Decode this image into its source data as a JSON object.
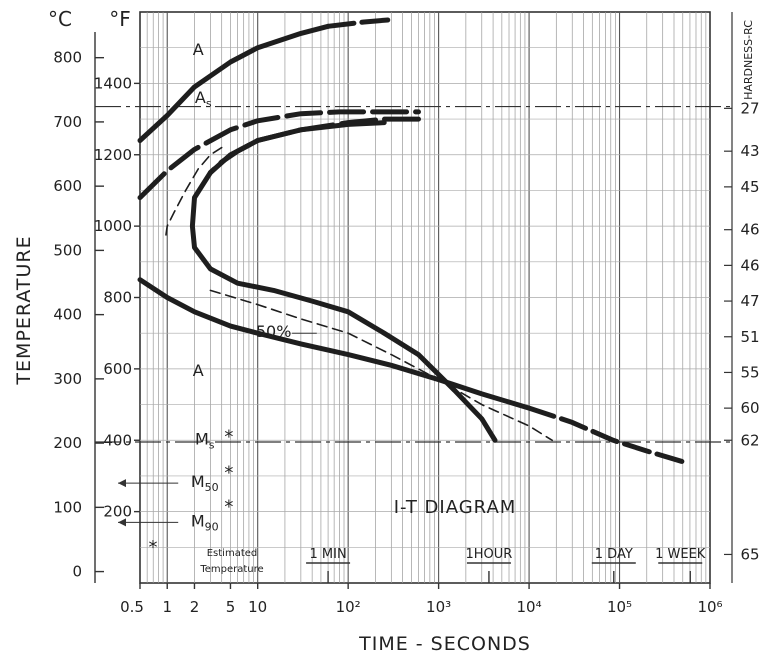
{
  "chart_data": {
    "type": "line",
    "title": "I-T DIAGRAM",
    "xlabel": "TIME - SECONDS",
    "ylabel": "TEMPERATURE",
    "y_unit_left": "°C",
    "y_unit_right": "°F",
    "y2label": "HARDNESS-RC",
    "x_scale": "log",
    "xlim": [
      0.5,
      1000000
    ],
    "ylim_f": [
      0,
      1600
    ],
    "x_ticks": [
      {
        "value": 0.5,
        "label": "0.5"
      },
      {
        "value": 1,
        "label": "1"
      },
      {
        "value": 2,
        "label": "2"
      },
      {
        "value": 5,
        "label": "5"
      },
      {
        "value": 10,
        "label": "10"
      },
      {
        "value": 100,
        "label": "10²"
      },
      {
        "value": 1000,
        "label": "10³"
      },
      {
        "value": 10000,
        "label": "10⁴"
      },
      {
        "value": 100000,
        "label": "10⁵"
      },
      {
        "value": 1000000,
        "label": "10⁶"
      }
    ],
    "y_ticks_c": [
      {
        "value": 0,
        "label": "0"
      },
      {
        "value": 100,
        "label": "100"
      },
      {
        "value": 200,
        "label": "200"
      },
      {
        "value": 300,
        "label": "300"
      },
      {
        "value": 400,
        "label": "400"
      },
      {
        "value": 500,
        "label": "500"
      },
      {
        "value": 600,
        "label": "600"
      },
      {
        "value": 700,
        "label": "700"
      },
      {
        "value": 800,
        "label": "800"
      }
    ],
    "y_ticks_f": [
      {
        "value": 200,
        "label": "200"
      },
      {
        "value": 400,
        "label": "400"
      },
      {
        "value": 600,
        "label": "600"
      },
      {
        "value": 800,
        "label": "800"
      },
      {
        "value": 1000,
        "label": "1000"
      },
      {
        "value": 1200,
        "label": "1200"
      },
      {
        "value": 1400,
        "label": "1400"
      }
    ],
    "hardness_ticks": [
      {
        "temp_f": 1330,
        "label": "27"
      },
      {
        "temp_f": 1210,
        "label": "43"
      },
      {
        "temp_f": 1110,
        "label": "45"
      },
      {
        "temp_f": 990,
        "label": "46"
      },
      {
        "temp_f": 890,
        "label": "46"
      },
      {
        "temp_f": 790,
        "label": "47"
      },
      {
        "temp_f": 690,
        "label": "51"
      },
      {
        "temp_f": 590,
        "label": "55"
      },
      {
        "temp_f": 490,
        "label": "60"
      },
      {
        "temp_f": 400,
        "label": "62"
      },
      {
        "temp_f": 80,
        "label": "65"
      }
    ],
    "time_markers": [
      {
        "value": 60,
        "label": "1 MIN"
      },
      {
        "value": 3600,
        "label": "1HOUR"
      },
      {
        "value": 86400,
        "label": "1 DAY"
      },
      {
        "value": 604800,
        "label": "1 WEEK"
      }
    ],
    "reference_lines": [
      {
        "name": "As",
        "temp_f": 1335
      },
      {
        "name": "Ms",
        "temp_f": 395
      }
    ],
    "series": [
      {
        "id": "austenite-upper-boundary",
        "x": [
          0.5,
          1,
          2,
          5,
          10,
          30,
          60,
          150,
          280
        ],
        "y_f": [
          1240,
          1310,
          1390,
          1460,
          1500,
          1540,
          1560,
          1572,
          1578
        ],
        "style": "solid-then-dashed"
      },
      {
        "id": "as-dashed-line",
        "x": [
          0.5,
          1,
          2,
          5,
          10,
          30,
          80,
          200,
          600
        ],
        "y_f": [
          1080,
          1155,
          1215,
          1270,
          1295,
          1315,
          1320,
          1320,
          1320
        ],
        "style": "dashed"
      },
      {
        "id": "transformation-start",
        "x": [
          250,
          100,
          30,
          10,
          5,
          3,
          2,
          1.9,
          2,
          3,
          6,
          15,
          40,
          100,
          250,
          600,
          1500,
          3000,
          4200
        ],
        "y_f": [
          1290,
          1285,
          1270,
          1240,
          1200,
          1150,
          1080,
          1000,
          940,
          880,
          840,
          820,
          790,
          760,
          700,
          640,
          540,
          460,
          400
        ],
        "style": "solid"
      },
      {
        "id": "transformation-end",
        "x": [
          600,
          250,
          100,
          30,
          10,
          6,
          4,
          3
        ],
        "y_f": [
          1300,
          1300,
          1290,
          1270,
          1240,
          1210,
          1180,
          1150
        ],
        "style": "dashed"
      },
      {
        "id": "fifty-percent-line",
        "x": [
          3,
          10,
          30,
          100,
          300,
          1000,
          3000,
          10000,
          18000
        ],
        "y_f": [
          820,
          780,
          740,
          700,
          640,
          570,
          500,
          440,
          400
        ],
        "style": "dashed-thin"
      },
      {
        "id": "transformation-finish",
        "x": [
          0.5,
          1,
          2,
          5,
          10,
          30,
          100,
          300,
          1000,
          3000,
          10000,
          30000,
          85000,
          200000,
          500000
        ],
        "y_f": [
          850,
          800,
          760,
          720,
          700,
          670,
          640,
          610,
          570,
          530,
          490,
          450,
          400,
          370,
          340
        ],
        "style": "solid-then-dashed"
      },
      {
        "id": "start-dashed-thin",
        "x": [
          4,
          3,
          2.2,
          1.6,
          1.2,
          1,
          0.95
        ],
        "y_f": [
          1220,
          1200,
          1160,
          1100,
          1040,
          1000,
          960
        ],
        "style": "dashed-thin"
      }
    ],
    "annotations": [
      {
        "text": "A",
        "x": 2,
        "temp_f": 1480
      },
      {
        "text": "A",
        "x": 2,
        "temp_f": 580
      },
      {
        "text": "As",
        "x": 5,
        "temp_f": 1360
      },
      {
        "text": "50%",
        "x": 30,
        "temp_f": 700
      },
      {
        "text": "Ms",
        "x": 5,
        "temp_f": 400
      },
      {
        "text": "M50",
        "x": 5,
        "temp_f": 280
      },
      {
        "text": "M90",
        "x": 5,
        "temp_f": 170
      }
    ],
    "legend_note": {
      "symbol": "*",
      "lines": [
        "Estimated",
        "Temperature"
      ]
    },
    "grid": true
  }
}
